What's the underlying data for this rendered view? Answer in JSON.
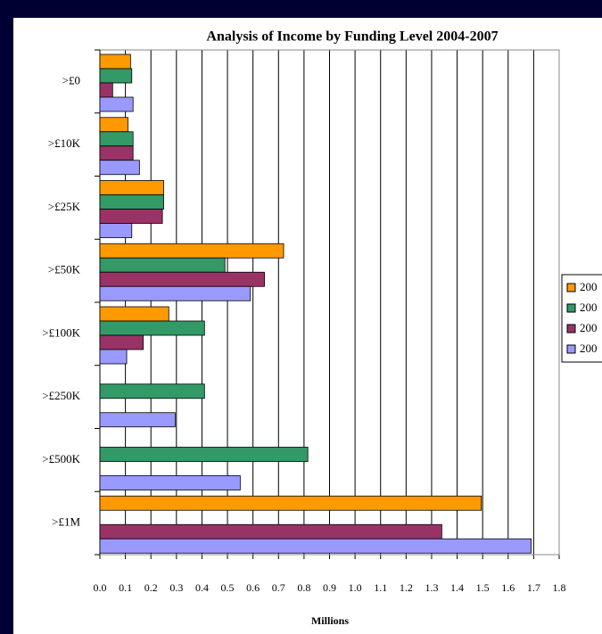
{
  "chart_data": {
    "type": "bar",
    "orientation": "horizontal",
    "title": "Analysis of Income by Funding Level 2004-2007",
    "x_label": "Millions",
    "categories": [
      ">£0",
      ">£10K",
      ">£25K",
      ">£50K",
      ">£100K",
      ">£250K",
      ">£500K",
      ">£1M"
    ],
    "series": [
      {
        "name": "200",
        "color": "#ff9900",
        "values": [
          0.12,
          0.11,
          0.25,
          0.72,
          0.27,
          null,
          null,
          1.495
        ]
      },
      {
        "name": "200",
        "color": "#339966",
        "values": [
          0.125,
          0.13,
          0.25,
          0.49,
          0.41,
          0.41,
          0.815,
          null
        ]
      },
      {
        "name": "200",
        "color": "#993366",
        "values": [
          0.05,
          0.13,
          0.245,
          0.645,
          0.17,
          null,
          null,
          1.34
        ]
      },
      {
        "name": "200",
        "color": "#9999ff",
        "values": [
          0.13,
          0.155,
          0.125,
          0.59,
          0.105,
          0.295,
          0.55,
          1.69
        ]
      }
    ],
    "xlim": [
      0,
      1.8
    ],
    "xticks": [
      {
        "value": 0,
        "label": "0.0"
      },
      0.1,
      0.2,
      0.3,
      0.4,
      0.5,
      0.6,
      0.7,
      0.8,
      0.9,
      {
        "value": 1,
        "label": "1.0"
      },
      1.1,
      1.2,
      1.3,
      1.4,
      1.5,
      1.6,
      1.7,
      1.8
    ],
    "grid": true,
    "legend": "right"
  }
}
